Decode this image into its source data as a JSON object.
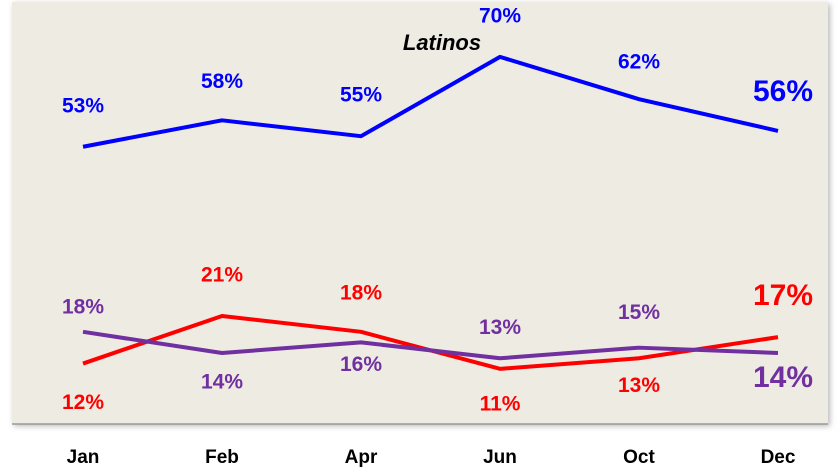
{
  "chart_data": {
    "type": "line",
    "categories": [
      "Jan",
      "Feb",
      "Apr",
      "Jun",
      "Oct",
      "Dec"
    ],
    "series": [
      {
        "name": "Latinos",
        "color": "#0000ff",
        "values": [
          53,
          58,
          55,
          70,
          62,
          56
        ],
        "value_labels": [
          "53%",
          "58%",
          "55%",
          "70%",
          "62%",
          "56%"
        ]
      },
      {
        "color": "#ff0000",
        "values": [
          12,
          21,
          18,
          11,
          13,
          17
        ],
        "value_labels": [
          "12%",
          "21%",
          "18%",
          "11%",
          "13%",
          "17%"
        ]
      },
      {
        "color": "#7030a0",
        "values": [
          18,
          14,
          16,
          13,
          15,
          14
        ],
        "value_labels": [
          "18%",
          "14%",
          "16%",
          "13%",
          "15%",
          "14%"
        ]
      }
    ],
    "ylim": [
      0,
      80
    ]
  }
}
